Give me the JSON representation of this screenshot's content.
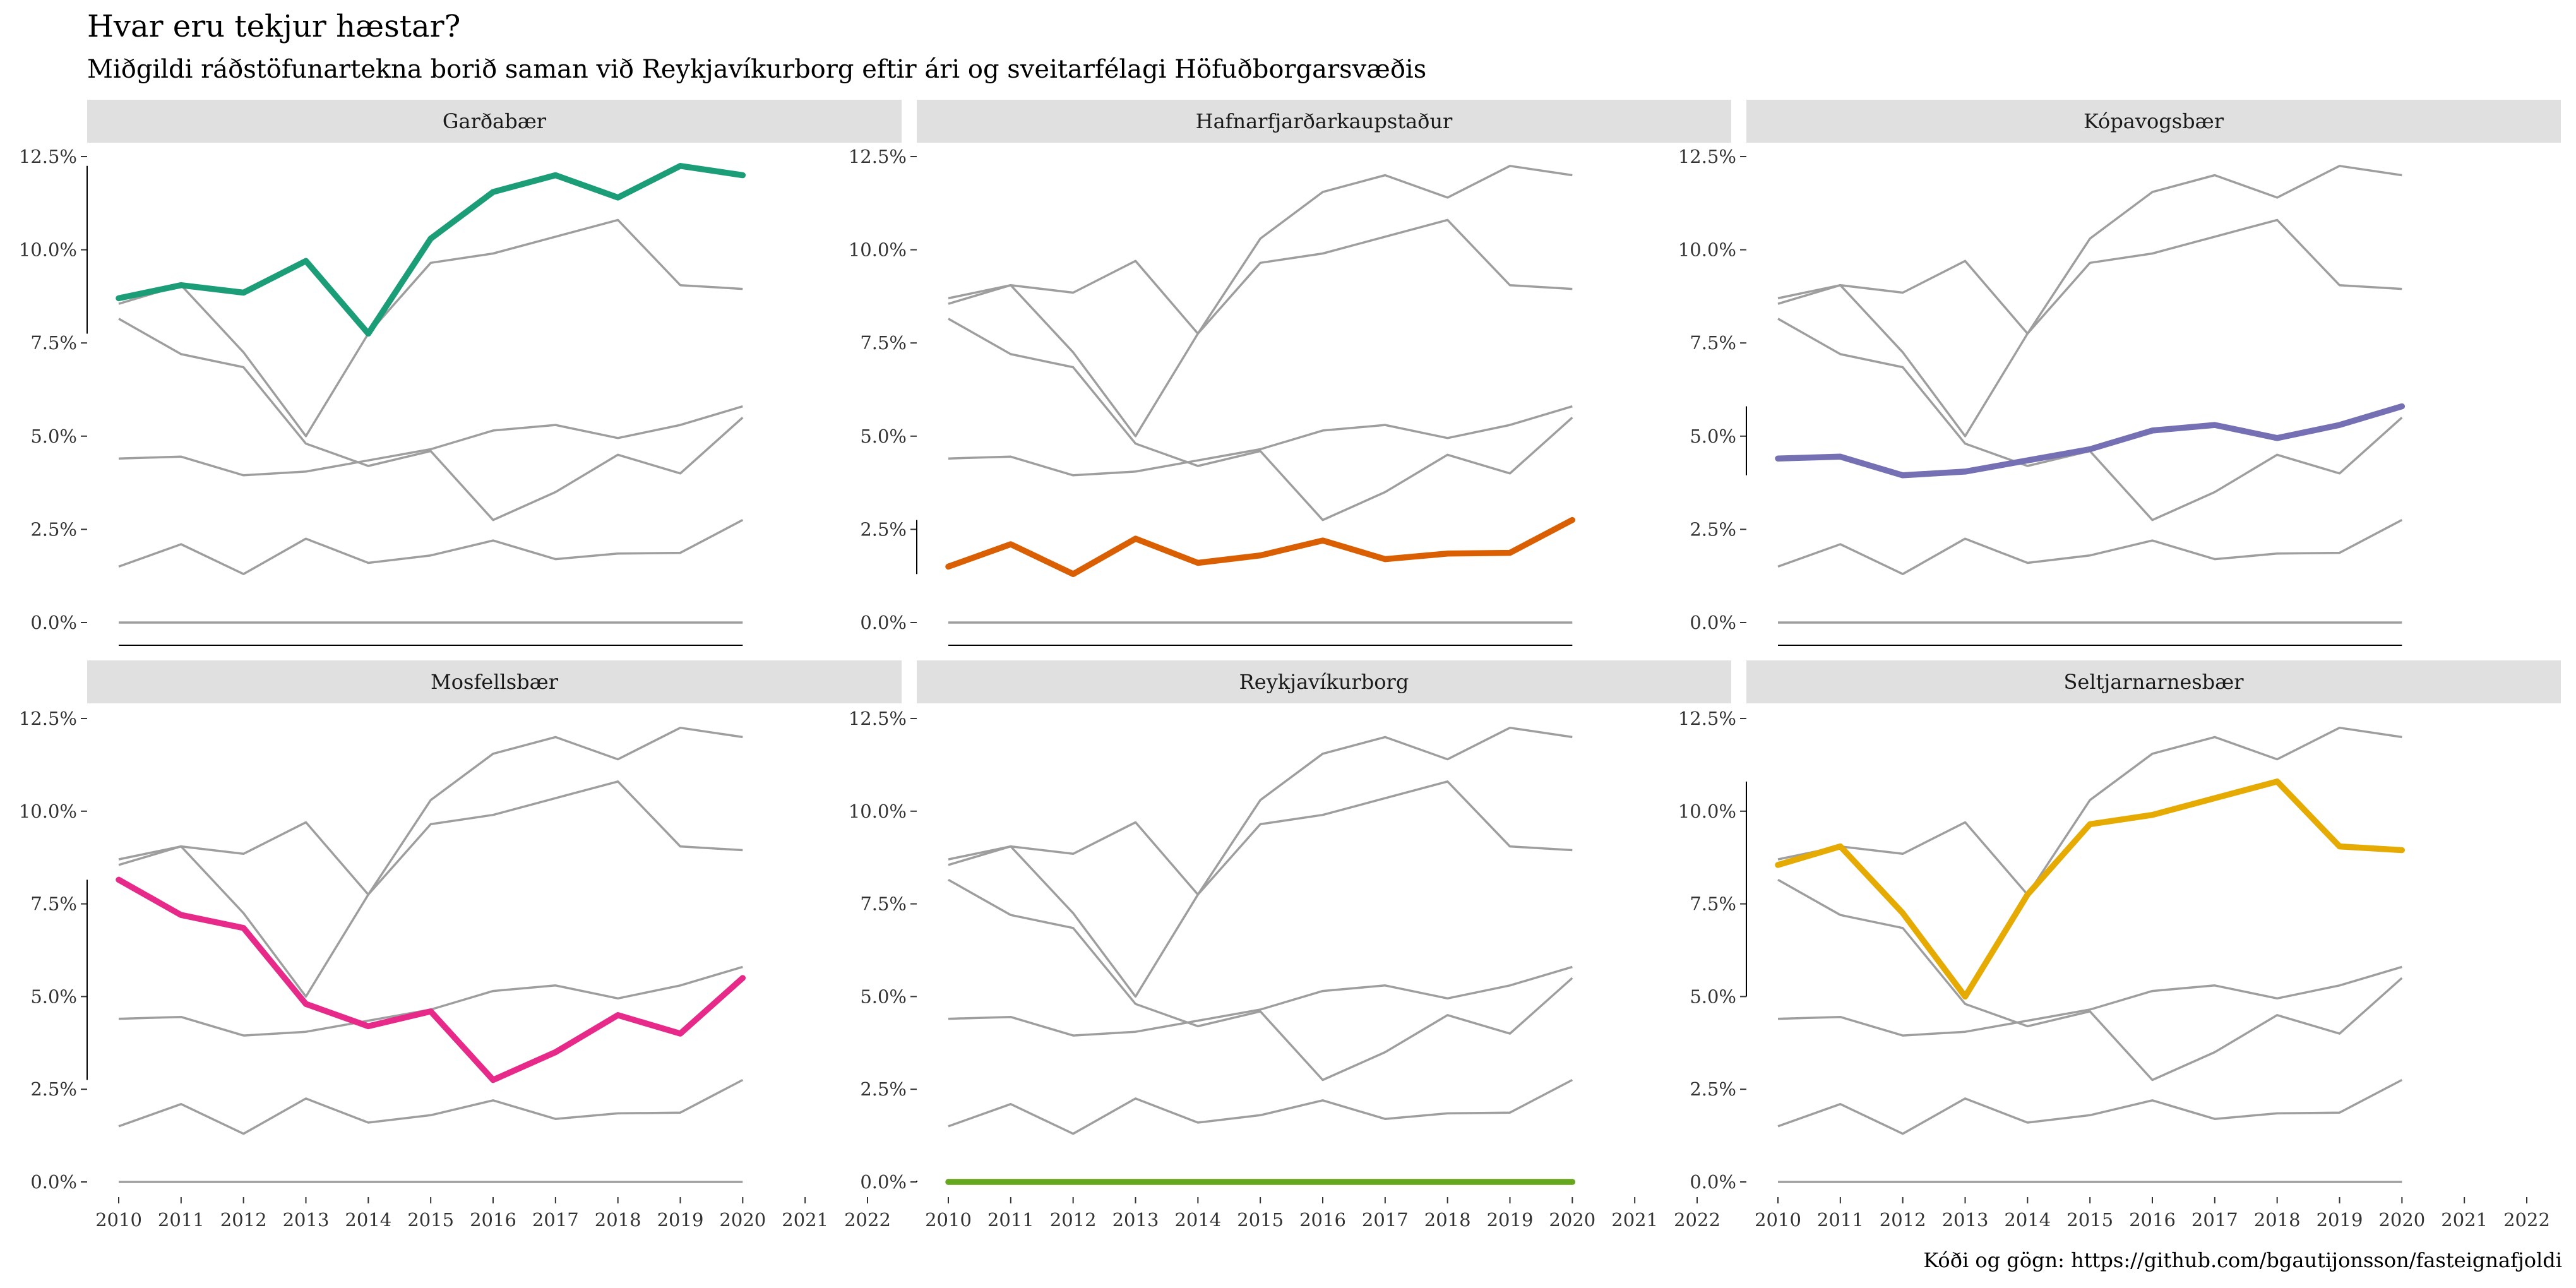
{
  "title": "Hvar eru tekjur hæstar?",
  "subtitle": "Miðgildi ráðstöfunartekna borið saman við Reykjavíkurborg eftir ári og sveitarfélagi Höfuðborgarsvæðis",
  "caption": "Kóði og gögn: https://github.com/bgautijonsson/fasteignafjoldi",
  "chart_data": {
    "type": "line",
    "x": [
      2010,
      2011,
      2012,
      2013,
      2014,
      2015,
      2016,
      2017,
      2018,
      2019,
      2020
    ],
    "xlim": [
      2010,
      2022
    ],
    "x_ticks": [
      "2010",
      "2011",
      "2012",
      "2013",
      "2014",
      "2015",
      "2016",
      "2017",
      "2018",
      "2019",
      "2020",
      "2021",
      "2022"
    ],
    "ylim": [
      0,
      12.5
    ],
    "y_ticks": [
      0,
      2.5,
      5,
      7.5,
      10,
      12.5
    ],
    "y_tick_labels": [
      "0.0%",
      "2.5%",
      "5.0%",
      "7.5%",
      "10.0%",
      "12.5%"
    ],
    "grid": false,
    "background_line_color": "#9e9e9e",
    "series": [
      {
        "name": "Garðabær",
        "color": "#1b9e77",
        "values": [
          8.7,
          9.05,
          8.85,
          9.7,
          7.75,
          10.3,
          11.55,
          12.0,
          11.4,
          12.25,
          12.0
        ]
      },
      {
        "name": "Hafnarfjarðarkaupstaður",
        "color": "#d95f02",
        "values": [
          1.5,
          2.1,
          1.3,
          2.25,
          1.6,
          1.8,
          2.2,
          1.7,
          1.85,
          1.87,
          2.75
        ]
      },
      {
        "name": "Kópavogsbær",
        "color": "#7570b3",
        "values": [
          4.4,
          4.45,
          3.95,
          4.05,
          4.35,
          4.65,
          5.15,
          5.3,
          4.95,
          5.3,
          5.8
        ]
      },
      {
        "name": "Mosfellsbær",
        "color": "#e7298a",
        "values": [
          8.15,
          7.2,
          6.85,
          4.8,
          4.2,
          4.6,
          2.75,
          3.5,
          4.5,
          4.0,
          5.5
        ]
      },
      {
        "name": "Reykjavíkurborg",
        "color": "#66a61e",
        "values": [
          0,
          0,
          0,
          0,
          0,
          0,
          0,
          0,
          0,
          0,
          0
        ]
      },
      {
        "name": "Seltjarnarnesbær",
        "color": "#e6ab02",
        "values": [
          8.55,
          9.05,
          7.25,
          5.0,
          7.75,
          9.65,
          9.9,
          10.35,
          10.8,
          9.05,
          8.95
        ]
      }
    ]
  }
}
